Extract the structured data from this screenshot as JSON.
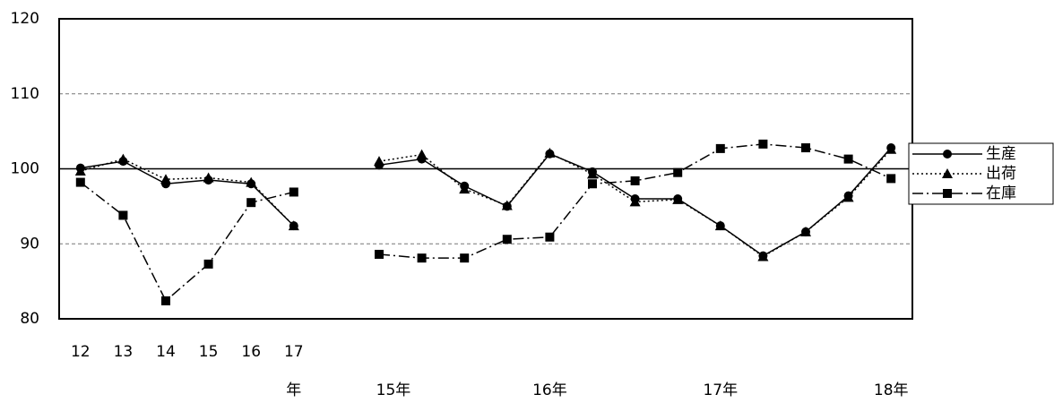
{
  "chart_data": {
    "type": "line",
    "categories": [
      "12",
      "13",
      "14",
      "15",
      "16",
      "17",
      null,
      null,
      null,
      null,
      null,
      null,
      null,
      null,
      null,
      null,
      null,
      null,
      null,
      null
    ],
    "year_labels": [
      null,
      null,
      null,
      null,
      null,
      "年",
      null,
      "15年",
      null,
      null,
      null,
      "16年",
      null,
      null,
      null,
      "17年",
      null,
      null,
      null,
      "18年"
    ],
    "series": [
      {
        "name": "生産",
        "color": "#000000",
        "line_style": "solid",
        "marker": "circle",
        "values": [
          100.1,
          101.0,
          98.0,
          98.5,
          98.0,
          92.4,
          null,
          100.5,
          101.3,
          97.7,
          95.0,
          102.0,
          99.6,
          96.0,
          96.0,
          92.4,
          88.4,
          91.6,
          96.4,
          102.8
        ]
      },
      {
        "name": "出荷",
        "color": "#000000",
        "line_style": "dotted",
        "marker": "triangle",
        "values": [
          99.7,
          101.3,
          98.6,
          98.8,
          98.2,
          92.4,
          null,
          101.0,
          101.9,
          97.3,
          95.1,
          102.1,
          99.3,
          95.6,
          95.9,
          92.4,
          88.3,
          91.6,
          96.2,
          102.6
        ]
      },
      {
        "name": "在庫",
        "color": "#000000",
        "line_style": "dashdot",
        "marker": "square",
        "values": [
          98.2,
          93.8,
          82.4,
          87.3,
          95.5,
          96.9,
          null,
          88.6,
          88.1,
          88.1,
          90.6,
          90.9,
          98.0,
          98.4,
          99.5,
          102.7,
          103.3,
          102.8,
          101.3,
          98.7
        ]
      }
    ],
    "ylim": [
      80,
      120
    ],
    "yticks": [
      80,
      90,
      100,
      110,
      120
    ],
    "grid": true,
    "reference_line": 100,
    "legend": "right"
  }
}
